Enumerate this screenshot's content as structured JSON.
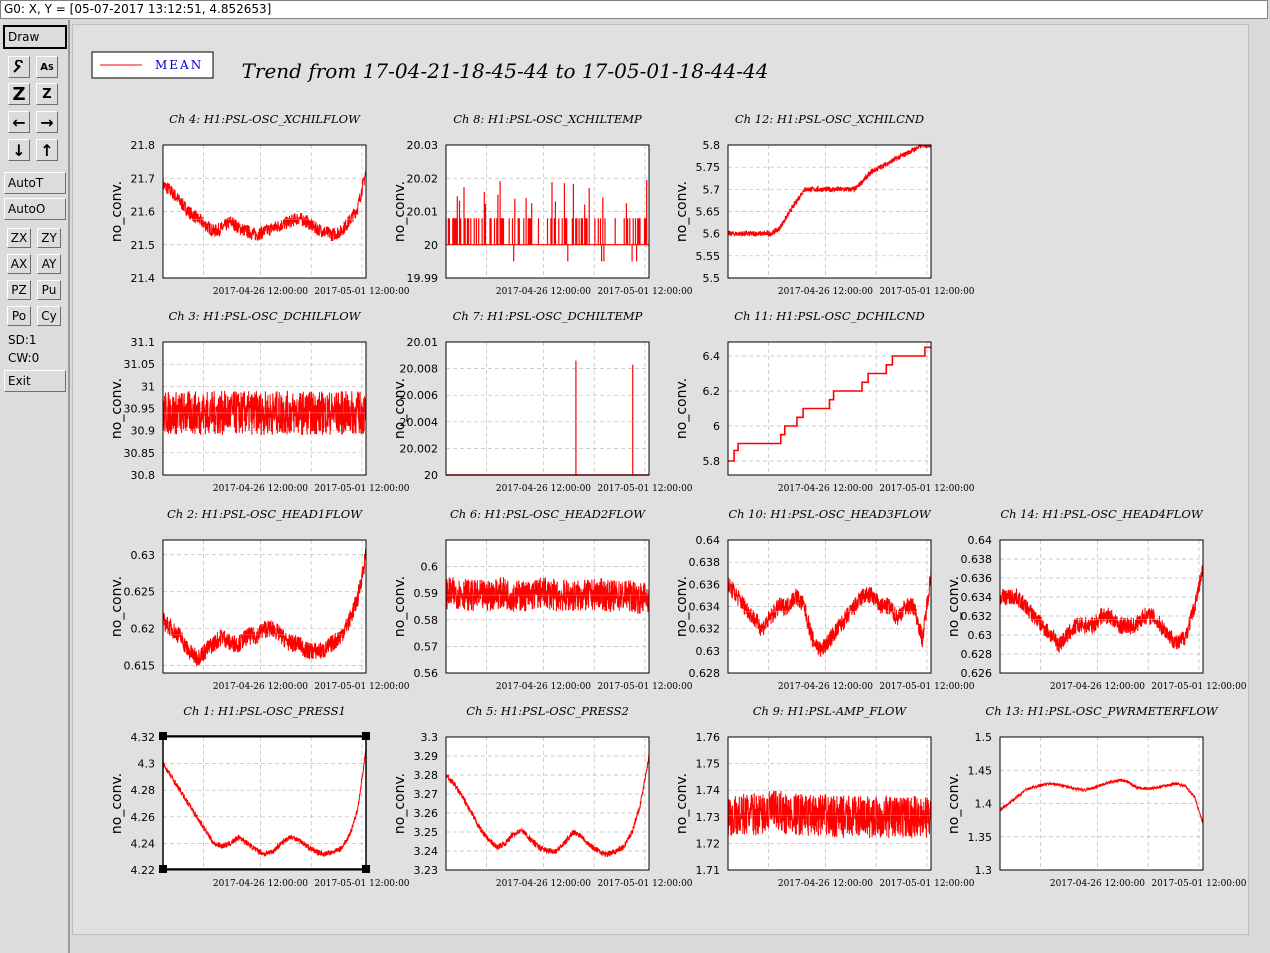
{
  "status": {
    "text": "G0: X, Y = [05-07-2017 13:12:51, 4.852653]"
  },
  "toolbar": {
    "draw_label": "Draw",
    "autot_label": "AutoT",
    "autoo_label": "AutoO",
    "zx_label": "ZX",
    "zy_label": "ZY",
    "ax_label": "AX",
    "ay_label": "AY",
    "pz_label": "PZ",
    "pu_label": "Pu",
    "po_label": "Po",
    "cy_label": "Cy",
    "sd_label": "SD:1",
    "cw_label": "CW:0",
    "exit_label": "Exit",
    "icons": [
      "wrench-icon",
      "text-size-icon",
      "zoom-z-icon",
      "zoom-z-small-icon",
      "arrow-left-icon",
      "arrow-right-icon",
      "arrow-down-icon",
      "arrow-up-icon"
    ]
  },
  "legend": {
    "label": "MEAN",
    "color": "#ff0000",
    "text_color": "#0000cc"
  },
  "main_title": "Trend from 17-04-21-18-45-44 to 17-05-01-18-44-44",
  "colors": {
    "series": "#ff0000",
    "grid": "#bbbbbb",
    "frame": "#000000"
  },
  "chart_data": [
    {
      "type": "line",
      "title": "Ch 4: H1:PSL-OSC_XCHILFLOW",
      "ylabel": "no_conv.",
      "ylim": [
        21.4,
        21.8
      ],
      "yticks": [
        "21.4",
        "21.5",
        "21.6",
        "21.7",
        "21.8"
      ],
      "xticks": [
        "2017-04-26 12:00:00",
        "2017-05-01 12:00:00"
      ],
      "series": [
        {
          "noise": 0.02,
          "values": [
            21.68,
            21.66,
            21.63,
            21.6,
            21.58,
            21.56,
            21.54,
            21.55,
            21.57,
            21.55,
            21.54,
            21.53,
            21.54,
            21.55,
            21.56,
            21.57,
            21.58,
            21.57,
            21.55,
            21.54,
            21.53,
            21.54,
            21.57,
            21.61,
            21.72
          ]
        }
      ]
    },
    {
      "type": "line",
      "title": "Ch 8: H1:PSL-OSC_XCHILTEMP",
      "ylabel": "no_conv.",
      "ylim": [
        19.99,
        20.03
      ],
      "yticks": [
        "19.99",
        "20",
        "20.01",
        "20.02",
        "20.03"
      ],
      "xticks": [
        "2017-04-26 12:00:00",
        "2017-05-01 12:00:00"
      ],
      "series": [
        {
          "base": 20.0,
          "spike_to": 20.008,
          "spike_hi": 20.02,
          "spike_lo": 19.995
        }
      ]
    },
    {
      "type": "line",
      "title": "Ch 12: H1:PSL-OSC_XCHILCND",
      "ylabel": "no_conv.",
      "ylim": [
        5.5,
        5.8
      ],
      "yticks": [
        "5.5",
        "5.55",
        "5.6",
        "5.65",
        "5.7",
        "5.75",
        "5.8"
      ],
      "xticks": [
        "2017-04-26 12:00:00",
        "2017-05-01 12:00:00"
      ],
      "series": [
        {
          "noise": 0.006,
          "values": [
            5.6,
            5.6,
            5.6,
            5.6,
            5.6,
            5.6,
            5.61,
            5.64,
            5.67,
            5.7,
            5.7,
            5.7,
            5.7,
            5.7,
            5.7,
            5.7,
            5.72,
            5.74,
            5.75,
            5.76,
            5.77,
            5.78,
            5.79,
            5.8,
            5.8
          ]
        }
      ]
    },
    {
      "type": "line",
      "title": "Ch 3: H1:PSL-OSC_DCHILFLOW",
      "ylabel": "no_conv.",
      "ylim": [
        30.8,
        31.1
      ],
      "yticks": [
        "30.8",
        "30.85",
        "30.9",
        "30.95",
        "31",
        "31.05",
        "31.1"
      ],
      "xticks": [
        "2017-04-26 12:00:00",
        "2017-05-01 12:00:00"
      ],
      "series": [
        {
          "noise": 0.05,
          "values": [
            30.94,
            30.94,
            30.94,
            30.94,
            30.94,
            30.94,
            30.94,
            30.94,
            30.94,
            30.94,
            30.94,
            30.94,
            30.94,
            30.94,
            30.94,
            30.94,
            30.94,
            30.94,
            30.94,
            30.94,
            30.94,
            30.94,
            30.94,
            30.94,
            30.94
          ]
        }
      ]
    },
    {
      "type": "line",
      "title": "Ch 7: H1:PSL-OSC_DCHILTEMP",
      "ylabel": "no_conv.",
      "ylim": [
        20.0,
        20.01
      ],
      "yticks": [
        "20",
        "20.002",
        "20.004",
        "20.006",
        "20.008",
        "20.01"
      ],
      "xticks": [
        "2017-04-26 12:00:00",
        "2017-05-01 12:00:00"
      ],
      "series": [
        {
          "base": 20.0,
          "spikes": [
            [
              0.64,
              20.0086
            ],
            [
              0.92,
              20.0083
            ]
          ]
        }
      ]
    },
    {
      "type": "line",
      "title": "Ch 11: H1:PSL-OSC_DCHILCND",
      "ylabel": "no_conv.",
      "ylim": [
        5.72,
        6.48
      ],
      "yticks": [
        "5.8",
        "6",
        "6.2",
        "6.4"
      ],
      "xticks": [
        "2017-04-26 12:00:00",
        "2017-05-01 12:00:00"
      ],
      "series": [
        {
          "steps": [
            [
              0.0,
              5.8
            ],
            [
              0.03,
              5.86
            ],
            [
              0.05,
              5.9
            ],
            [
              0.26,
              5.95
            ],
            [
              0.28,
              6.0
            ],
            [
              0.34,
              6.05
            ],
            [
              0.37,
              6.1
            ],
            [
              0.5,
              6.15
            ],
            [
              0.52,
              6.2
            ],
            [
              0.66,
              6.25
            ],
            [
              0.69,
              6.3
            ],
            [
              0.78,
              6.35
            ],
            [
              0.81,
              6.4
            ],
            [
              0.97,
              6.45
            ]
          ]
        }
      ]
    },
    {
      "type": "line",
      "title": "Ch 2: H1:PSL-OSC_HEAD1FLOW",
      "ylabel": "no_conv.",
      "ylim": [
        0.614,
        0.632
      ],
      "yticks": [
        "0.615",
        "0.62",
        "0.625",
        "0.63"
      ],
      "xticks": [
        "2017-04-26 12:00:00",
        "2017-05-01 12:00:00"
      ],
      "series": [
        {
          "noise": 0.0012,
          "values": [
            0.621,
            0.62,
            0.619,
            0.617,
            0.616,
            0.617,
            0.618,
            0.619,
            0.618,
            0.618,
            0.619,
            0.619,
            0.62,
            0.62,
            0.619,
            0.618,
            0.618,
            0.617,
            0.617,
            0.617,
            0.618,
            0.619,
            0.621,
            0.624,
            0.63
          ]
        }
      ]
    },
    {
      "type": "line",
      "title": "Ch 6: H1:PSL-OSC_HEAD2FLOW",
      "ylabel": "no_conv.",
      "ylim": [
        0.56,
        0.61
      ],
      "yticks": [
        "0.56",
        "0.57",
        "0.58",
        "0.59",
        "0.6"
      ],
      "xticks": [
        "2017-04-26 12:00:00",
        "2017-05-01 12:00:00"
      ],
      "series": [
        {
          "noise": 0.006,
          "values": [
            0.59,
            0.59,
            0.59,
            0.589,
            0.589,
            0.589,
            0.59,
            0.59,
            0.589,
            0.589,
            0.589,
            0.59,
            0.59,
            0.589,
            0.589,
            0.589,
            0.589,
            0.589,
            0.59,
            0.589,
            0.589,
            0.589,
            0.589,
            0.588,
            0.589
          ]
        }
      ]
    },
    {
      "type": "line",
      "title": "Ch 10: H1:PSL-OSC_HEAD3FLOW",
      "ylabel": "no_conv.",
      "ylim": [
        0.628,
        0.64
      ],
      "yticks": [
        "0.628",
        "0.63",
        "0.632",
        "0.634",
        "0.636",
        "0.638",
        "0.64"
      ],
      "xticks": [
        "2017-04-26 12:00:00",
        "2017-05-01 12:00:00"
      ],
      "series": [
        {
          "noise": 0.0008,
          "values": [
            0.636,
            0.635,
            0.634,
            0.633,
            0.632,
            0.633,
            0.634,
            0.634,
            0.635,
            0.634,
            0.631,
            0.63,
            0.631,
            0.632,
            0.633,
            0.634,
            0.635,
            0.635,
            0.634,
            0.634,
            0.633,
            0.634,
            0.634,
            0.631,
            0.637
          ]
        }
      ]
    },
    {
      "type": "line",
      "title": "Ch 14: H1:PSL-OSC_HEAD4FLOW",
      "ylabel": "no_conv.",
      "ylim": [
        0.626,
        0.64
      ],
      "yticks": [
        "0.626",
        "0.628",
        "0.63",
        "0.632",
        "0.634",
        "0.636",
        "0.638",
        "0.64"
      ],
      "xticks": [
        "2017-04-26 12:00:00",
        "2017-05-01 12:00:00"
      ],
      "series": [
        {
          "noise": 0.0009,
          "values": [
            0.634,
            0.634,
            0.634,
            0.633,
            0.632,
            0.631,
            0.63,
            0.629,
            0.63,
            0.631,
            0.631,
            0.631,
            0.632,
            0.632,
            0.631,
            0.631,
            0.631,
            0.632,
            0.632,
            0.631,
            0.63,
            0.629,
            0.63,
            0.633,
            0.637
          ]
        }
      ]
    },
    {
      "type": "line",
      "title": "Ch 1: H1:PSL-OSC_PRESS1",
      "ylabel": "no_conv.",
      "ylim": [
        4.22,
        4.32
      ],
      "yticks": [
        "4.22",
        "4.24",
        "4.26",
        "4.28",
        "4.3",
        "4.32"
      ],
      "xticks": [
        "2017-04-26 12:00:00",
        "2017-05-01 12:00:00"
      ],
      "series": [
        {
          "noise": 0.002,
          "values": [
            4.3,
            4.29,
            4.28,
            4.27,
            4.26,
            4.25,
            4.24,
            4.238,
            4.24,
            4.245,
            4.24,
            4.235,
            4.232,
            4.234,
            4.24,
            4.245,
            4.243,
            4.238,
            4.234,
            4.232,
            4.233,
            4.236,
            4.245,
            4.265,
            4.31
          ]
        }
      ]
    },
    {
      "type": "line",
      "title": "Ch 5: H1:PSL-OSC_PRESS2",
      "ylabel": "no_conv.",
      "ylim": [
        3.23,
        3.3
      ],
      "yticks": [
        "3.23",
        "3.24",
        "3.25",
        "3.26",
        "3.27",
        "3.28",
        "3.29",
        "3.3"
      ],
      "xticks": [
        "2017-04-26 12:00:00",
        "2017-05-01 12:00:00"
      ],
      "series": [
        {
          "noise": 0.0015,
          "values": [
            3.28,
            3.275,
            3.268,
            3.26,
            3.252,
            3.246,
            3.242,
            3.244,
            3.249,
            3.251,
            3.246,
            3.242,
            3.24,
            3.24,
            3.244,
            3.25,
            3.248,
            3.243,
            3.24,
            3.238,
            3.24,
            3.242,
            3.25,
            3.265,
            3.29
          ]
        }
      ]
    },
    {
      "type": "line",
      "title": "Ch 9: H1:PSL-AMP_FLOW",
      "ylabel": "no_conv.",
      "ylim": [
        1.71,
        1.76
      ],
      "yticks": [
        "1.71",
        "1.72",
        "1.73",
        "1.74",
        "1.75",
        "1.76"
      ],
      "xticks": [
        "2017-04-26 12:00:00",
        "2017-05-01 12:00:00"
      ],
      "series": [
        {
          "noise": 0.008,
          "values": [
            1.73,
            1.73,
            1.731,
            1.731,
            1.731,
            1.732,
            1.732,
            1.731,
            1.731,
            1.731,
            1.73,
            1.731,
            1.73,
            1.73,
            1.73,
            1.73,
            1.73,
            1.73,
            1.73,
            1.73,
            1.73,
            1.73,
            1.73,
            1.73,
            1.73
          ]
        }
      ]
    },
    {
      "type": "line",
      "title": "Ch 13: H1:PSL-OSC_PWRMETERFLOW",
      "ylabel": "no_conv.",
      "ylim": [
        1.3,
        1.5
      ],
      "yticks": [
        "1.3",
        "1.35",
        "1.4",
        "1.45",
        "1.5"
      ],
      "xticks": [
        "2017-04-26 12:00:00",
        "2017-05-01 12:00:00"
      ],
      "series": [
        {
          "noise": 0.002,
          "values": [
            1.39,
            1.4,
            1.41,
            1.42,
            1.425,
            1.428,
            1.43,
            1.428,
            1.425,
            1.422,
            1.42,
            1.423,
            1.428,
            1.432,
            1.435,
            1.433,
            1.425,
            1.422,
            1.423,
            1.425,
            1.428,
            1.43,
            1.425,
            1.41,
            1.37
          ]
        }
      ]
    }
  ]
}
